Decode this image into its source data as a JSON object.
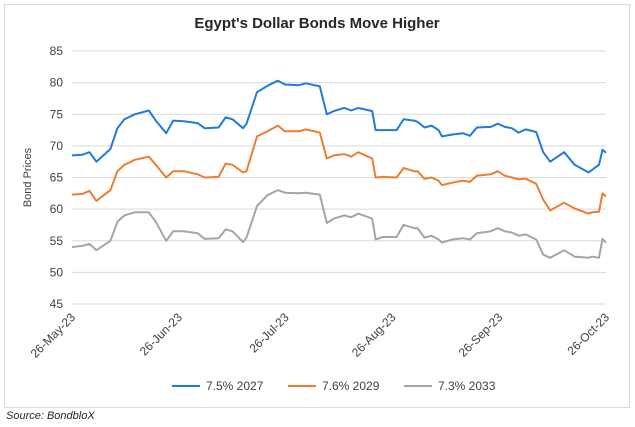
{
  "source": "Source: BondbloX",
  "chart_data": {
    "type": "line",
    "title": "Egypt's Dollar Bonds Move Higher",
    "xlabel": "",
    "ylabel": "Bond Prices",
    "ylim": [
      45,
      85
    ],
    "yticks": [
      "45",
      "50",
      "55",
      "60",
      "65",
      "70",
      "75",
      "80",
      "85"
    ],
    "xlim": [
      "2023-05-26",
      "2023-10-26"
    ],
    "xticks": [
      "26-May-23",
      "26-Jun-23",
      "26-Jul-23",
      "26-Aug-23",
      "26-Sep-23",
      "26-Oct-23"
    ],
    "grid": true,
    "legend": "bottom",
    "series": [
      {
        "name": "7.5% 2027",
        "color": "#1f7bdc",
        "points": [
          [
            "2023-05-26",
            68.5
          ],
          [
            "2023-05-29",
            68.6
          ],
          [
            "2023-05-31",
            69.0
          ],
          [
            "2023-06-02",
            67.5
          ],
          [
            "2023-06-06",
            69.5
          ],
          [
            "2023-06-08",
            72.8
          ],
          [
            "2023-06-10",
            74.2
          ],
          [
            "2023-06-13",
            75.0
          ],
          [
            "2023-06-17",
            75.6
          ],
          [
            "2023-06-19",
            74.0
          ],
          [
            "2023-06-22",
            72.0
          ],
          [
            "2023-06-24",
            74.0
          ],
          [
            "2023-06-27",
            73.9
          ],
          [
            "2023-07-01",
            73.6
          ],
          [
            "2023-07-03",
            72.8
          ],
          [
            "2023-07-07",
            72.9
          ],
          [
            "2023-07-09",
            74.5
          ],
          [
            "2023-07-11",
            74.2
          ],
          [
            "2023-07-14",
            72.8
          ],
          [
            "2023-07-15",
            73.5
          ],
          [
            "2023-07-18",
            78.5
          ],
          [
            "2023-07-21",
            79.5
          ],
          [
            "2023-07-24",
            80.3
          ],
          [
            "2023-07-26",
            79.7
          ],
          [
            "2023-07-30",
            79.6
          ],
          [
            "2023-08-01",
            79.9
          ],
          [
            "2023-08-05",
            79.4
          ],
          [
            "2023-08-07",
            75.0
          ],
          [
            "2023-08-09",
            75.5
          ],
          [
            "2023-08-12",
            76.0
          ],
          [
            "2023-08-14",
            75.6
          ],
          [
            "2023-08-16",
            76.0
          ],
          [
            "2023-08-20",
            75.5
          ],
          [
            "2023-08-21",
            72.5
          ],
          [
            "2023-08-23",
            72.5
          ],
          [
            "2023-08-27",
            72.5
          ],
          [
            "2023-08-29",
            74.2
          ],
          [
            "2023-09-01",
            74.0
          ],
          [
            "2023-09-02",
            73.8
          ],
          [
            "2023-09-04",
            72.9
          ],
          [
            "2023-09-06",
            73.2
          ],
          [
            "2023-09-08",
            72.5
          ],
          [
            "2023-09-09",
            71.5
          ],
          [
            "2023-09-12",
            71.8
          ],
          [
            "2023-09-15",
            72.0
          ],
          [
            "2023-09-17",
            71.6
          ],
          [
            "2023-09-19",
            72.9
          ],
          [
            "2023-09-23",
            73.0
          ],
          [
            "2023-09-25",
            73.5
          ],
          [
            "2023-09-27",
            73.0
          ],
          [
            "2023-09-29",
            72.8
          ],
          [
            "2023-10-01",
            72.1
          ],
          [
            "2023-10-03",
            72.6
          ],
          [
            "2023-10-06",
            72.2
          ],
          [
            "2023-10-08",
            69.0
          ],
          [
            "2023-10-10",
            67.5
          ],
          [
            "2023-10-14",
            69.0
          ],
          [
            "2023-10-17",
            67.0
          ],
          [
            "2023-10-21",
            65.8
          ],
          [
            "2023-10-22",
            66.2
          ],
          [
            "2023-10-24",
            67.0
          ],
          [
            "2023-10-25",
            69.4
          ],
          [
            "2023-10-26",
            68.9
          ]
        ]
      },
      {
        "name": "7.6% 2029",
        "color": "#ed7d31",
        "points": [
          [
            "2023-05-26",
            62.3
          ],
          [
            "2023-05-29",
            62.4
          ],
          [
            "2023-05-31",
            62.9
          ],
          [
            "2023-06-02",
            61.3
          ],
          [
            "2023-06-06",
            63.0
          ],
          [
            "2023-06-08",
            66.0
          ],
          [
            "2023-06-10",
            67.0
          ],
          [
            "2023-06-13",
            67.8
          ],
          [
            "2023-06-17",
            68.3
          ],
          [
            "2023-06-19",
            67.0
          ],
          [
            "2023-06-22",
            65.0
          ],
          [
            "2023-06-24",
            66.0
          ],
          [
            "2023-06-27",
            66.0
          ],
          [
            "2023-07-01",
            65.5
          ],
          [
            "2023-07-03",
            65.0
          ],
          [
            "2023-07-07",
            65.1
          ],
          [
            "2023-07-09",
            67.2
          ],
          [
            "2023-07-11",
            67.0
          ],
          [
            "2023-07-14",
            65.8
          ],
          [
            "2023-07-15",
            66.0
          ],
          [
            "2023-07-18",
            71.5
          ],
          [
            "2023-07-21",
            72.3
          ],
          [
            "2023-07-24",
            73.2
          ],
          [
            "2023-07-26",
            72.3
          ],
          [
            "2023-07-30",
            72.3
          ],
          [
            "2023-08-01",
            72.6
          ],
          [
            "2023-08-05",
            72.1
          ],
          [
            "2023-08-07",
            68.0
          ],
          [
            "2023-08-09",
            68.5
          ],
          [
            "2023-08-12",
            68.7
          ],
          [
            "2023-08-14",
            68.3
          ],
          [
            "2023-08-16",
            69.0
          ],
          [
            "2023-08-20",
            68.0
          ],
          [
            "2023-08-21",
            65.0
          ],
          [
            "2023-08-23",
            65.1
          ],
          [
            "2023-08-27",
            65.0
          ],
          [
            "2023-08-29",
            66.5
          ],
          [
            "2023-09-01",
            66.0
          ],
          [
            "2023-09-02",
            66.0
          ],
          [
            "2023-09-04",
            64.8
          ],
          [
            "2023-09-06",
            65.0
          ],
          [
            "2023-09-08",
            64.5
          ],
          [
            "2023-09-09",
            63.8
          ],
          [
            "2023-09-12",
            64.2
          ],
          [
            "2023-09-15",
            64.5
          ],
          [
            "2023-09-17",
            64.3
          ],
          [
            "2023-09-19",
            65.3
          ],
          [
            "2023-09-23",
            65.5
          ],
          [
            "2023-09-25",
            66.0
          ],
          [
            "2023-09-27",
            65.3
          ],
          [
            "2023-09-29",
            65.0
          ],
          [
            "2023-10-01",
            64.7
          ],
          [
            "2023-10-03",
            64.8
          ],
          [
            "2023-10-06",
            64.0
          ],
          [
            "2023-10-08",
            61.5
          ],
          [
            "2023-10-10",
            59.8
          ],
          [
            "2023-10-14",
            61.0
          ],
          [
            "2023-10-17",
            60.1
          ],
          [
            "2023-10-21",
            59.3
          ],
          [
            "2023-10-22",
            59.5
          ],
          [
            "2023-10-24",
            59.6
          ],
          [
            "2023-10-25",
            62.5
          ],
          [
            "2023-10-26",
            62.0
          ]
        ]
      },
      {
        "name": "7.3% 2033",
        "color": "#a5a5a5",
        "points": [
          [
            "2023-05-26",
            54.0
          ],
          [
            "2023-05-29",
            54.2
          ],
          [
            "2023-05-31",
            54.5
          ],
          [
            "2023-06-02",
            53.5
          ],
          [
            "2023-06-06",
            55.0
          ],
          [
            "2023-06-08",
            58.0
          ],
          [
            "2023-06-10",
            59.0
          ],
          [
            "2023-06-13",
            59.5
          ],
          [
            "2023-06-17",
            59.5
          ],
          [
            "2023-06-19",
            58.0
          ],
          [
            "2023-06-22",
            55.0
          ],
          [
            "2023-06-24",
            56.5
          ],
          [
            "2023-06-27",
            56.5
          ],
          [
            "2023-07-01",
            56.2
          ],
          [
            "2023-07-03",
            55.3
          ],
          [
            "2023-07-07",
            55.4
          ],
          [
            "2023-07-09",
            56.8
          ],
          [
            "2023-07-11",
            56.5
          ],
          [
            "2023-07-14",
            54.8
          ],
          [
            "2023-07-15",
            55.5
          ],
          [
            "2023-07-18",
            60.5
          ],
          [
            "2023-07-21",
            62.2
          ],
          [
            "2023-07-24",
            63.0
          ],
          [
            "2023-07-26",
            62.6
          ],
          [
            "2023-07-30",
            62.5
          ],
          [
            "2023-08-01",
            62.6
          ],
          [
            "2023-08-05",
            62.3
          ],
          [
            "2023-08-07",
            57.8
          ],
          [
            "2023-08-09",
            58.5
          ],
          [
            "2023-08-12",
            59.0
          ],
          [
            "2023-08-14",
            58.7
          ],
          [
            "2023-08-16",
            59.3
          ],
          [
            "2023-08-20",
            58.5
          ],
          [
            "2023-08-21",
            55.2
          ],
          [
            "2023-08-23",
            55.6
          ],
          [
            "2023-08-27",
            55.6
          ],
          [
            "2023-08-29",
            57.5
          ],
          [
            "2023-09-01",
            57.0
          ],
          [
            "2023-09-02",
            57.0
          ],
          [
            "2023-09-04",
            55.5
          ],
          [
            "2023-09-06",
            55.8
          ],
          [
            "2023-09-08",
            55.2
          ],
          [
            "2023-09-09",
            54.7
          ],
          [
            "2023-09-12",
            55.2
          ],
          [
            "2023-09-15",
            55.4
          ],
          [
            "2023-09-17",
            55.2
          ],
          [
            "2023-09-19",
            56.2
          ],
          [
            "2023-09-23",
            56.5
          ],
          [
            "2023-09-25",
            57.0
          ],
          [
            "2023-09-27",
            56.5
          ],
          [
            "2023-09-29",
            56.3
          ],
          [
            "2023-10-01",
            55.8
          ],
          [
            "2023-10-03",
            56.0
          ],
          [
            "2023-10-06",
            55.2
          ],
          [
            "2023-10-08",
            52.8
          ],
          [
            "2023-10-10",
            52.3
          ],
          [
            "2023-10-14",
            53.5
          ],
          [
            "2023-10-17",
            52.5
          ],
          [
            "2023-10-21",
            52.3
          ],
          [
            "2023-10-22",
            52.5
          ],
          [
            "2023-10-24",
            52.3
          ],
          [
            "2023-10-25",
            55.3
          ],
          [
            "2023-10-26",
            54.7
          ]
        ]
      }
    ]
  }
}
